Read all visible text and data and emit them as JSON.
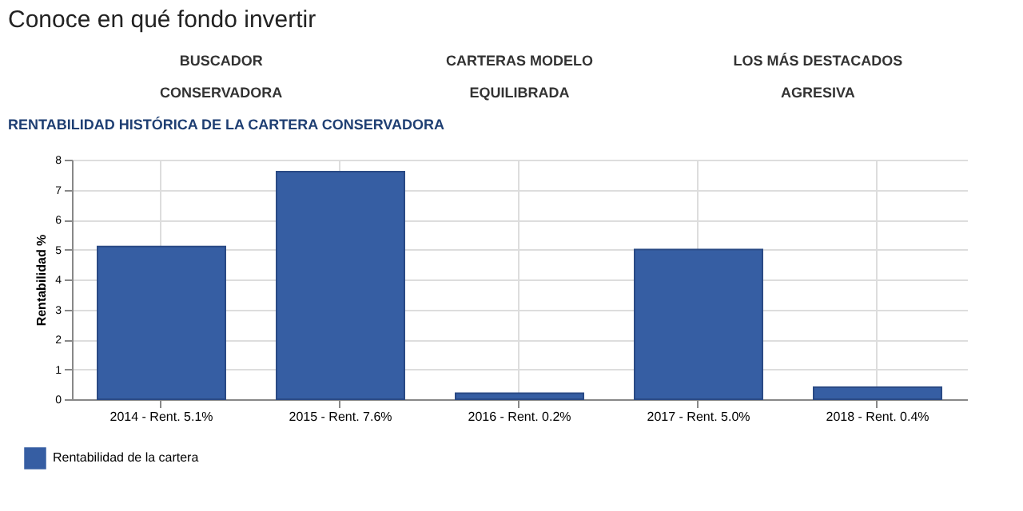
{
  "chart_data": {
    "type": "bar",
    "title": "Conoce en qué fondo invertir",
    "subtitle": "RENTABILIDAD HISTÓRICA DE LA CARTERA CONSERVADORA",
    "annotations": [
      "BUSCADOR",
      "CARTERAS MODELO",
      "LOS MÁS DESTACADOS",
      "CONSERVADORA",
      "EQUILIBRADA",
      "AGRESIVA"
    ],
    "categories": [
      "2014 - Rent. 5.1%",
      "2015 - Rent. 7.6%",
      "2016 - Rent. 0.2%",
      "2017 - Rent. 5.0%",
      "2018 - Rent. 0.4%"
    ],
    "series": [
      {
        "name": "Rentabilidad de la cartera",
        "color": "#365ea3",
        "values": [
          5.1,
          7.6,
          0.2,
          5.0,
          0.4
        ]
      }
    ],
    "ylabel": "Rentabilidad %",
    "ylim": [
      0,
      8
    ],
    "yticks": [
      0,
      1,
      2,
      3,
      4,
      5,
      6,
      7,
      8
    ],
    "grid": true,
    "legend": "bottom left"
  }
}
